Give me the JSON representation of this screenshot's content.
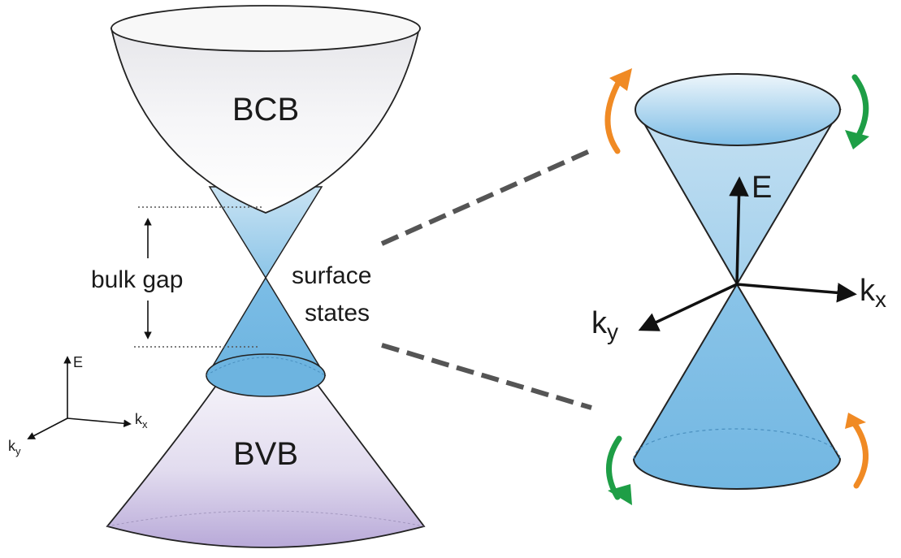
{
  "band_diagram": {
    "bulk_conduction_band_label": "BCB",
    "bulk_valence_band_label": "BVB",
    "bulk_gap_label": "bulk gap",
    "surface_states_label_line1": "surface",
    "surface_states_label_line2": "states",
    "axes": {
      "energy_label": "E",
      "kx_label": "k",
      "kx_sub": "x",
      "ky_label": "k",
      "ky_sub": "y"
    }
  },
  "dirac_cone": {
    "axes": {
      "energy_label": "E",
      "kx_label": "k",
      "kx_sub": "x",
      "ky_label": "k",
      "ky_sub": "y"
    }
  },
  "colors": {
    "bcb_fill": "#f2f2f4",
    "bvb_fill": "#d9d2ea",
    "surface_cone_fill": "#a9d4ec",
    "surface_cone_dark": "#6fb6df",
    "dashed_line": "#555555",
    "spin_arrow_orange": "#f08a24",
    "spin_arrow_green": "#1e9e46"
  }
}
